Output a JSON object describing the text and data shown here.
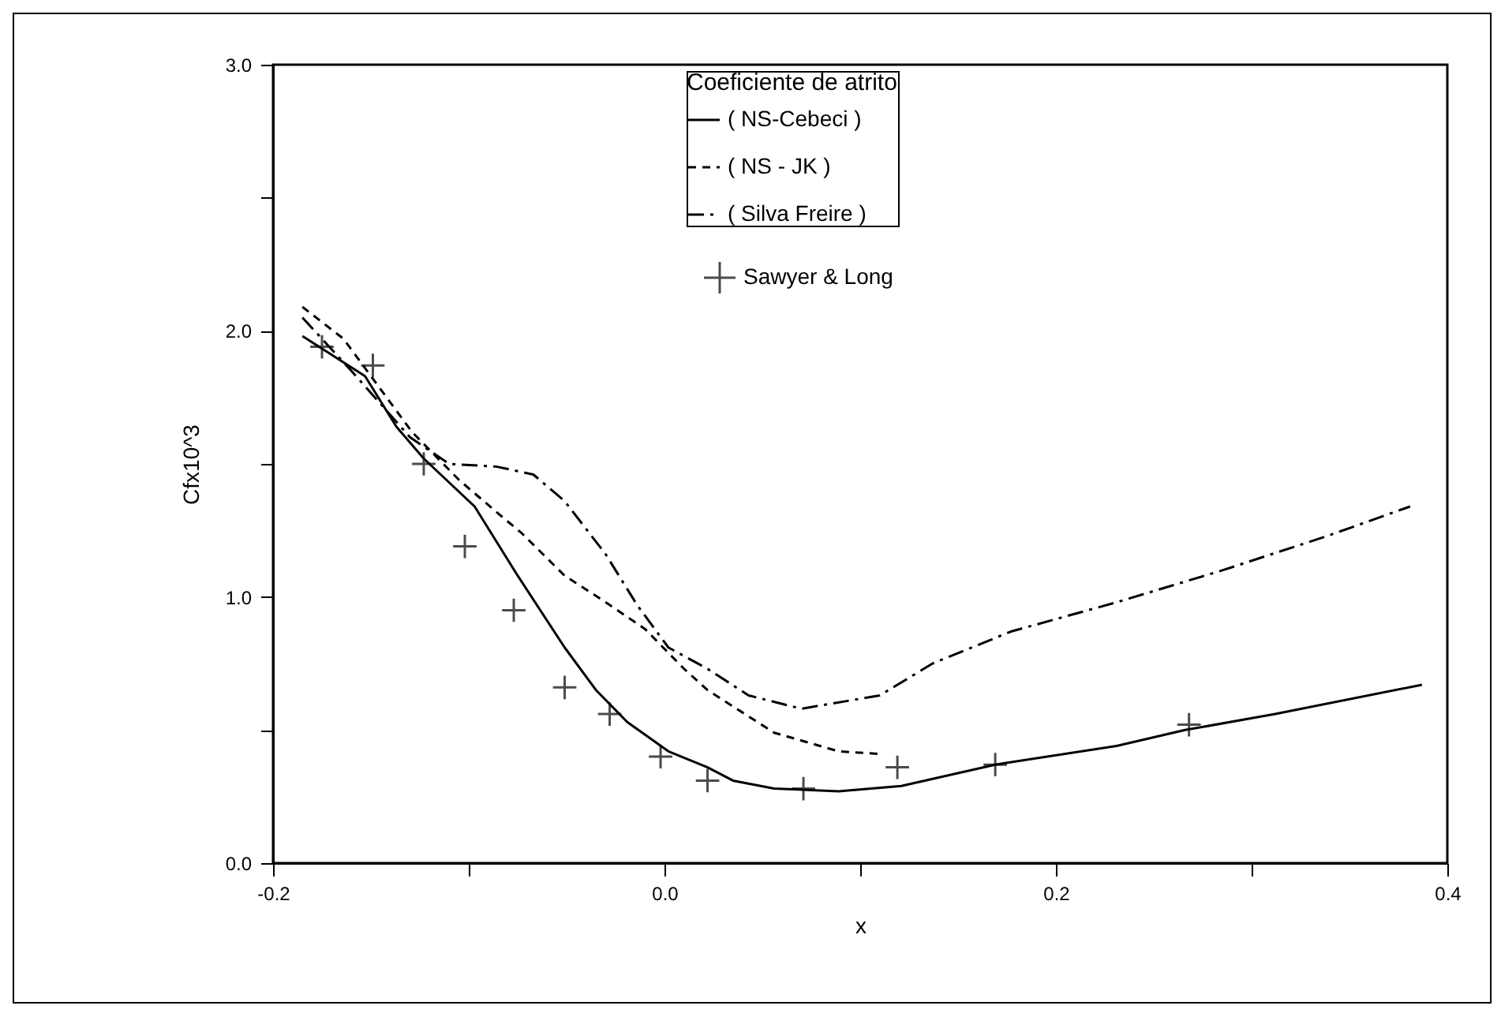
{
  "chart_data": {
    "type": "line",
    "xlabel": "x",
    "ylabel": "Cfx10^3",
    "legend_title": "Coeficiente de atrito",
    "legend": "top",
    "grid": false,
    "xlim": [
      -0.2,
      0.4
    ],
    "ylim": [
      0,
      3
    ],
    "xticks": [
      {
        "value": -0.2,
        "label": "-0.2"
      },
      {
        "value": -0.1,
        "label": null
      },
      {
        "value": 0,
        "label": "0.0"
      },
      {
        "value": 0.1,
        "label": null
      },
      {
        "value": 0.2,
        "label": "0.2"
      },
      {
        "value": 0.3,
        "label": null
      },
      {
        "value": 0.4,
        "label": "0.4"
      }
    ],
    "yticks": [
      {
        "value": 0,
        "label": "0.0"
      },
      {
        "value": 0.5,
        "label": null
      },
      {
        "value": 1,
        "label": "1.0"
      },
      {
        "value": 1.5,
        "label": null
      },
      {
        "value": 2,
        "label": "2.0"
      },
      {
        "value": 2.5,
        "label": null
      },
      {
        "value": 3,
        "label": "3.0"
      }
    ],
    "series": [
      {
        "name": "( NS-Cebeci )",
        "line_style": "solid",
        "color": "#000000",
        "x": [
          -0.185,
          -0.153,
          -0.137,
          -0.123,
          -0.097,
          -0.075,
          -0.051,
          -0.035,
          -0.019,
          0.002,
          0.022,
          0.035,
          0.056,
          0.089,
          0.121,
          0.169,
          0.231,
          0.266,
          0.312,
          0.387
        ],
        "values": [
          1.98,
          1.83,
          1.64,
          1.52,
          1.34,
          1.08,
          0.81,
          0.65,
          0.53,
          0.42,
          0.36,
          0.31,
          0.28,
          0.27,
          0.29,
          0.37,
          0.44,
          0.5,
          0.56,
          0.67
        ]
      },
      {
        "name": "( NS - JK )",
        "line_style": "dashed",
        "color": "#000000",
        "x": [
          -0.185,
          -0.164,
          -0.129,
          -0.105,
          -0.086,
          -0.073,
          -0.051,
          -0.03,
          -0.01,
          0.01,
          0.022,
          0.056,
          0.089,
          0.11
        ],
        "values": [
          2.09,
          1.97,
          1.62,
          1.44,
          1.32,
          1.24,
          1.08,
          0.98,
          0.88,
          0.73,
          0.65,
          0.49,
          0.42,
          0.41
        ]
      },
      {
        "name": "( Silva Freire )",
        "line_style": "dashdot",
        "color": "#000000",
        "x": [
          -0.185,
          -0.16,
          -0.13,
          -0.11,
          -0.086,
          -0.067,
          -0.051,
          -0.03,
          -0.014,
          0.002,
          0.022,
          0.043,
          0.07,
          0.11,
          0.137,
          0.177,
          0.231,
          0.285,
          0.339,
          0.381
        ],
        "values": [
          2.05,
          1.85,
          1.6,
          1.5,
          1.49,
          1.46,
          1.36,
          1.16,
          0.97,
          0.81,
          0.73,
          0.63,
          0.58,
          0.63,
          0.75,
          0.87,
          0.98,
          1.1,
          1.23,
          1.34
        ]
      },
      {
        "name": "Sawyer & Long",
        "type": "scatter",
        "marker": "cross",
        "color": "#000000",
        "x": [
          -0.175,
          -0.149,
          -0.123,
          -0.102,
          -0.077,
          -0.051,
          -0.028,
          -0.002,
          0.022,
          0.071,
          0.119,
          0.169,
          0.268
        ],
        "values": [
          1.94,
          1.87,
          1.5,
          1.19,
          0.95,
          0.66,
          0.56,
          0.4,
          0.31,
          0.28,
          0.36,
          0.37,
          0.52
        ]
      }
    ]
  }
}
